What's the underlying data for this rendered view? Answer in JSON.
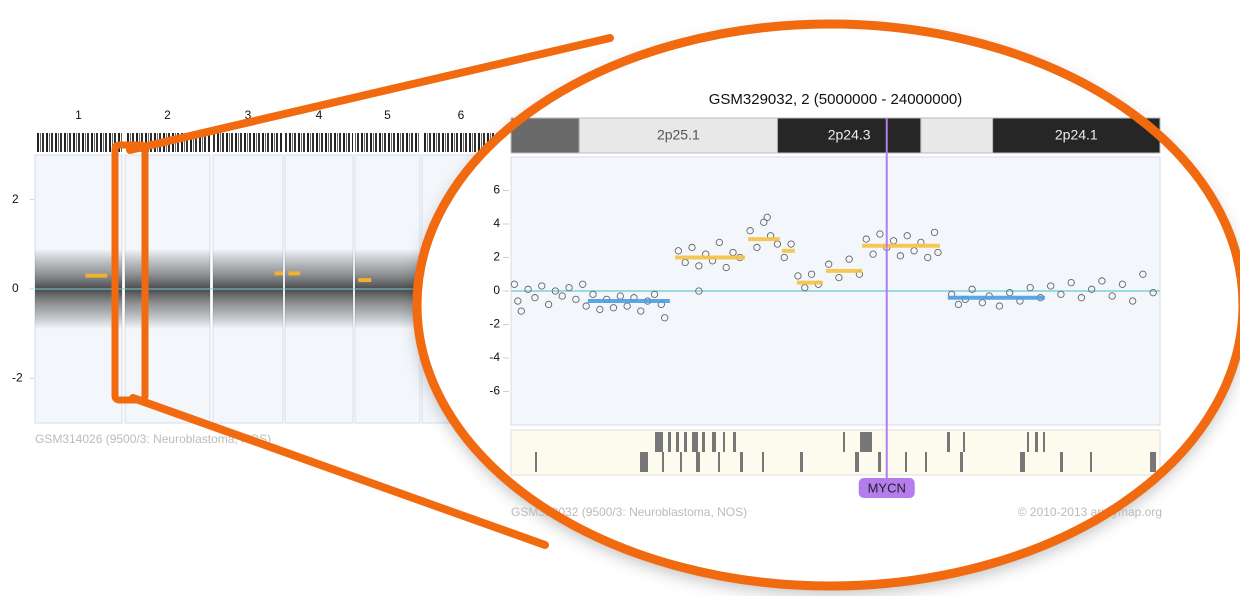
{
  "chart_data": [
    {
      "type": "overview",
      "caption": "GSM314026 (9500/3: Neuroblastoma, NOS)",
      "categories": [
        "1",
        "2",
        "3",
        "4",
        "5",
        "6"
      ],
      "ylim": [
        -3,
        3
      ],
      "yticks": [
        -2,
        0,
        2
      ],
      "gain_color": "#f0b030",
      "baseline_color": "#7fd0d8",
      "segments": [
        {
          "chromosome": 0,
          "start": 0.58,
          "end": 0.83,
          "value": 0.3
        },
        {
          "chromosome": 2,
          "start": 0.88,
          "end": 1.0,
          "value": 0.35
        },
        {
          "chromosome": 3,
          "start": 0.05,
          "end": 0.22,
          "value": 0.35
        },
        {
          "chromosome": 4,
          "start": 0.05,
          "end": 0.25,
          "value": 0.2
        }
      ]
    },
    {
      "type": "scatter",
      "title": "GSM329032, 2 (5000000 - 24000000)",
      "caption": "GSM329032 (9500/3: Neuroblastoma, NOS)",
      "copyright": "© 2010-2013 arraymap.org",
      "xlim": [
        5000000,
        24000000
      ],
      "ylim": [
        -8,
        8
      ],
      "yticks": [
        -6,
        -4,
        -2,
        0,
        2,
        4,
        6
      ],
      "gain_color": "#f5c242",
      "loss_color": "#4a9de0",
      "baseline_color": "#7fd0d8",
      "point_color": "#666",
      "bands": [
        {
          "start": 5000000,
          "end": 7000000,
          "color": "#6a6a6a"
        },
        {
          "start": 7000000,
          "end": 12800000,
          "color": "#e8e8e8",
          "label": "2p25.1"
        },
        {
          "start": 12800000,
          "end": 17000000,
          "color": "#262626",
          "label": "2p24.3"
        },
        {
          "start": 17000000,
          "end": 19100000,
          "color": "#e8e8e8"
        },
        {
          "start": 19100000,
          "end": 24000000,
          "color": "#262626",
          "label": "2p24.1"
        }
      ],
      "marker": {
        "label": "MYCN",
        "x": 16000000,
        "color": "#b57cf0"
      },
      "segments": [
        {
          "start": 7250000,
          "end": 9650000,
          "value": -0.6
        },
        {
          "start": 9800000,
          "end": 11850000,
          "value": 2.0
        },
        {
          "start": 11940000,
          "end": 12870000,
          "value": 3.1
        },
        {
          "start": 12930000,
          "end": 13310000,
          "value": 2.4
        },
        {
          "start": 13370000,
          "end": 14130000,
          "value": 0.5
        },
        {
          "start": 14220000,
          "end": 15280000,
          "value": 1.2
        },
        {
          "start": 15280000,
          "end": 17560000,
          "value": 2.7
        },
        {
          "start": 17790000,
          "end": 20630000,
          "value": -0.4
        }
      ],
      "x": [
        5100000,
        5200000,
        5300000,
        5500000,
        5700000,
        5900000,
        6100000,
        6300000,
        6500000,
        6700000,
        6900000,
        7100000,
        7200000,
        7400000,
        7600000,
        7800000,
        8000000,
        8200000,
        8400000,
        8600000,
        8800000,
        9000000,
        9200000,
        9400000,
        9500000,
        9900000,
        10100000,
        10300000,
        10500000,
        10700000,
        10900000,
        11100000,
        11300000,
        11500000,
        11700000,
        10500000,
        12000000,
        12200000,
        12400000,
        12600000,
        12800000,
        12500000,
        13000000,
        13200000,
        13400000,
        13600000,
        13800000,
        14000000,
        14300000,
        14600000,
        14900000,
        15200000,
        15400000,
        15600000,
        15800000,
        16000000,
        16200000,
        16400000,
        16600000,
        16800000,
        17000000,
        17200000,
        17400000,
        17500000,
        17900000,
        18100000,
        18300000,
        18500000,
        18800000,
        19000000,
        19300000,
        19600000,
        19900000,
        20200000,
        20500000,
        20800000,
        21100000,
        21400000,
        21700000,
        22000000,
        22300000,
        22600000,
        22900000,
        23200000,
        23500000,
        23800000
      ],
      "values": [
        0.4,
        -0.6,
        -1.2,
        0.1,
        -0.4,
        0.3,
        -0.8,
        0.0,
        -0.3,
        0.2,
        -0.5,
        0.4,
        -0.9,
        -0.2,
        -1.1,
        -0.5,
        -1.0,
        -0.3,
        -0.9,
        -0.4,
        -1.2,
        -0.6,
        -0.2,
        -0.8,
        -1.6,
        2.4,
        1.7,
        2.6,
        1.5,
        2.2,
        1.8,
        2.9,
        1.4,
        2.3,
        2.0,
        0.0,
        3.6,
        2.6,
        4.1,
        3.3,
        2.8,
        4.4,
        2.0,
        2.8,
        0.9,
        0.2,
        1.0,
        0.4,
        1.6,
        0.8,
        1.9,
        1.0,
        3.1,
        2.2,
        3.4,
        2.6,
        3.0,
        2.1,
        3.3,
        2.4,
        2.9,
        2.0,
        3.5,
        2.3,
        -0.2,
        -0.8,
        -0.5,
        0.1,
        -0.7,
        -0.3,
        -0.9,
        -0.1,
        -0.6,
        0.2,
        -0.4,
        0.3,
        -0.2,
        0.5,
        -0.4,
        0.1,
        0.6,
        -0.3,
        0.4,
        -0.6,
        1.0,
        -0.1
      ]
    }
  ]
}
